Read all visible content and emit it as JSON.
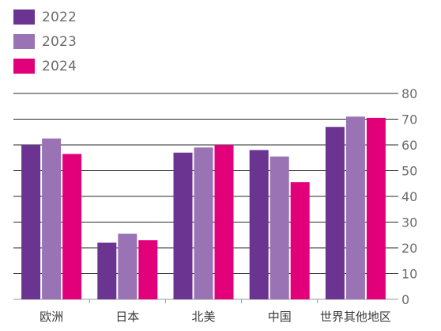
{
  "chart_data": {
    "type": "bar",
    "categories": [
      "欧洲",
      "日本",
      "北美",
      "中国",
      "世界其他地区"
    ],
    "series": [
      {
        "name": "2022",
        "color": "#6a3490",
        "values": [
          60,
          22,
          57,
          58,
          67
        ]
      },
      {
        "name": "2023",
        "color": "#9a73b5",
        "values": [
          62.5,
          25.5,
          59,
          55.5,
          71
        ]
      },
      {
        "name": "2024",
        "color": "#e2007a",
        "values": [
          56.5,
          23,
          60,
          45.5,
          70.5
        ]
      }
    ],
    "title": "",
    "xlabel": "",
    "ylabel": "",
    "ylim": [
      0,
      80
    ],
    "yticks": [
      0,
      10,
      20,
      30,
      40,
      50,
      60,
      70,
      80
    ],
    "y_axis_position": "right",
    "grid": true,
    "legend_position": "top-left"
  }
}
